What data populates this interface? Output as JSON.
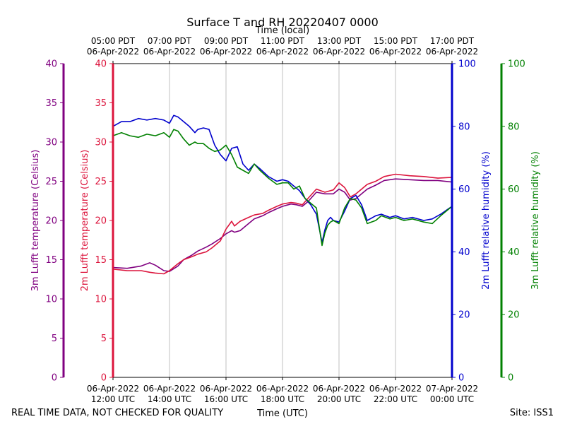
{
  "chart_data": {
    "type": "line",
    "title": "Surface T and RH 20220407 0000",
    "top_axis_title": "Time (local)",
    "xlabel": "Time (UTC)",
    "footer_left": "REAL TIME DATA, NOT CHECKED FOR QUALITY",
    "footer_right": "Site: ISS1",
    "x_unit": "hours UTC on 06-Apr-2022",
    "xlim": [
      12,
      24
    ],
    "x_ticks_bottom": [
      {
        "x": 12,
        "line1": "06-Apr-2022",
        "line2": "12:00 UTC"
      },
      {
        "x": 14,
        "line1": "06-Apr-2022",
        "line2": "14:00 UTC"
      },
      {
        "x": 16,
        "line1": "06-Apr-2022",
        "line2": "16:00 UTC"
      },
      {
        "x": 18,
        "line1": "06-Apr-2022",
        "line2": "18:00 UTC"
      },
      {
        "x": 20,
        "line1": "06-Apr-2022",
        "line2": "20:00 UTC"
      },
      {
        "x": 22,
        "line1": "06-Apr-2022",
        "line2": "22:00 UTC"
      },
      {
        "x": 24,
        "line1": "07-Apr-2022",
        "line2": "00:00 UTC"
      }
    ],
    "x_ticks_top": [
      {
        "x": 12,
        "line1": "05:00 PDT",
        "line2": "06-Apr-2022"
      },
      {
        "x": 14,
        "line1": "07:00 PDT",
        "line2": "06-Apr-2022"
      },
      {
        "x": 16,
        "line1": "09:00 PDT",
        "line2": "06-Apr-2022"
      },
      {
        "x": 18,
        "line1": "11:00 PDT",
        "line2": "06-Apr-2022"
      },
      {
        "x": 20,
        "line1": "13:00 PDT",
        "line2": "06-Apr-2022"
      },
      {
        "x": 22,
        "line1": "15:00 PDT",
        "line2": "06-Apr-2022"
      },
      {
        "x": 24,
        "line1": "17:00 PDT",
        "line2": "06-Apr-2022"
      }
    ],
    "grid": "vertical",
    "axes": [
      {
        "id": "t3",
        "label": "3m Lufft temperature (Celsius)",
        "side": "left-outer",
        "color": "#800080",
        "ylim": [
          0,
          40
        ],
        "ticks": [
          0,
          5,
          10,
          15,
          20,
          25,
          30,
          35,
          40
        ]
      },
      {
        "id": "t2",
        "label": "2m Lufft temperature (Celsius)",
        "side": "left-inner",
        "color": "#dc143c",
        "ylim": [
          0,
          40
        ],
        "ticks": [
          0,
          5,
          10,
          15,
          20,
          25,
          30,
          35,
          40
        ]
      },
      {
        "id": "rh2",
        "label": "2m Lufft relative humidity (%)",
        "side": "right-inner",
        "color": "#0000cd",
        "ylim": [
          0,
          100
        ],
        "ticks": [
          0,
          20,
          40,
          60,
          80,
          100
        ]
      },
      {
        "id": "rh3",
        "label": "3m Lufft relative humidity (%)",
        "side": "right-outer",
        "color": "#008000",
        "ylim": [
          0,
          100
        ],
        "ticks": [
          0,
          20,
          40,
          60,
          80,
          100
        ]
      }
    ],
    "series": [
      {
        "axis": "t3",
        "color": "#800080",
        "x": [
          12.0,
          12.5,
          13.0,
          13.3,
          13.5,
          13.8,
          14.0,
          14.3,
          14.5,
          14.8,
          15.0,
          15.3,
          15.5,
          15.8,
          16.0,
          16.2,
          16.3,
          16.5,
          16.8,
          17.0,
          17.3,
          17.5,
          17.8,
          18.0,
          18.3,
          18.5,
          18.7,
          18.9,
          19.2,
          19.5,
          19.8,
          20.0,
          20.2,
          20.4,
          20.6,
          20.8,
          21.0,
          21.3,
          21.6,
          22.0,
          22.5,
          23.0,
          23.5,
          24.0
        ],
        "y": [
          14.0,
          13.9,
          14.2,
          14.6,
          14.3,
          13.6,
          13.5,
          14.2,
          15.0,
          15.6,
          16.1,
          16.6,
          17.0,
          17.7,
          18.3,
          18.7,
          18.5,
          18.7,
          19.6,
          20.2,
          20.6,
          21.0,
          21.5,
          21.8,
          22.1,
          22.0,
          21.8,
          22.4,
          23.6,
          23.4,
          23.4,
          24.0,
          23.6,
          22.6,
          22.8,
          23.4,
          24.0,
          24.5,
          25.1,
          25.3,
          25.2,
          25.1,
          25.1,
          24.9
        ]
      },
      {
        "axis": "t2",
        "color": "#dc143c",
        "x": [
          12.0,
          12.5,
          13.0,
          13.3,
          13.5,
          13.8,
          14.0,
          14.3,
          14.5,
          14.8,
          15.0,
          15.3,
          15.5,
          15.8,
          16.0,
          16.2,
          16.3,
          16.5,
          16.8,
          17.0,
          17.3,
          17.5,
          17.8,
          18.0,
          18.3,
          18.5,
          18.7,
          18.9,
          19.2,
          19.5,
          19.8,
          20.0,
          20.2,
          20.4,
          20.6,
          20.8,
          21.0,
          21.3,
          21.6,
          22.0,
          22.5,
          23.0,
          23.5,
          24.0
        ],
        "y": [
          13.8,
          13.6,
          13.6,
          13.4,
          13.3,
          13.2,
          13.6,
          14.5,
          15.0,
          15.4,
          15.7,
          16.0,
          16.5,
          17.4,
          18.9,
          19.9,
          19.3,
          19.9,
          20.4,
          20.7,
          20.9,
          21.3,
          21.8,
          22.1,
          22.3,
          22.2,
          22.0,
          22.8,
          24.0,
          23.6,
          23.9,
          24.8,
          24.2,
          23.0,
          23.4,
          24.0,
          24.6,
          25.0,
          25.6,
          25.9,
          25.7,
          25.6,
          25.4,
          25.5
        ]
      },
      {
        "axis": "rh2",
        "color": "#0000cd",
        "x": [
          12.0,
          12.3,
          12.6,
          12.9,
          13.2,
          13.5,
          13.8,
          14.0,
          14.15,
          14.3,
          14.5,
          14.7,
          14.9,
          15.0,
          15.2,
          15.4,
          15.6,
          15.8,
          16.0,
          16.2,
          16.4,
          16.6,
          16.8,
          17.0,
          17.2,
          17.5,
          17.8,
          18.0,
          18.2,
          18.4,
          18.6,
          18.8,
          19.0,
          19.2,
          19.4,
          19.5,
          19.6,
          19.7,
          19.8,
          20.0,
          20.2,
          20.4,
          20.6,
          20.8,
          21.0,
          21.3,
          21.5,
          21.8,
          22.0,
          22.3,
          22.6,
          23.0,
          23.3,
          23.6,
          24.0
        ],
        "y": [
          80,
          81.5,
          81.5,
          82.5,
          82,
          82.5,
          82,
          81,
          83.5,
          83,
          81.5,
          80,
          78,
          79,
          79.5,
          79,
          74,
          71,
          69,
          73,
          73.5,
          68,
          66,
          68,
          66.5,
          64,
          62.5,
          63,
          62.5,
          61,
          59.5,
          57,
          55,
          52,
          43,
          47,
          50,
          51,
          50,
          49.5,
          53,
          57,
          58,
          55,
          50,
          51.5,
          52,
          51,
          51.5,
          50.5,
          51,
          50,
          50.5,
          52,
          54.5
        ]
      },
      {
        "axis": "rh3",
        "color": "#008000",
        "x": [
          12.0,
          12.3,
          12.6,
          12.9,
          13.2,
          13.5,
          13.8,
          14.0,
          14.15,
          14.3,
          14.5,
          14.7,
          14.9,
          15.0,
          15.2,
          15.4,
          15.6,
          15.8,
          16.0,
          16.2,
          16.4,
          16.6,
          16.8,
          17.0,
          17.2,
          17.5,
          17.8,
          18.0,
          18.2,
          18.4,
          18.6,
          18.8,
          19.0,
          19.2,
          19.4,
          19.5,
          19.6,
          19.7,
          19.8,
          20.0,
          20.2,
          20.4,
          20.6,
          20.8,
          21.0,
          21.3,
          21.5,
          21.8,
          22.0,
          22.3,
          22.6,
          23.0,
          23.3,
          23.6,
          24.0
        ],
        "y": [
          77,
          78,
          77,
          76.5,
          77.5,
          77,
          78,
          76.5,
          79,
          78.5,
          76,
          74,
          75,
          74.5,
          74.5,
          73,
          72,
          72.5,
          74,
          71,
          67,
          66,
          65,
          68,
          66,
          63.5,
          61.5,
          62,
          62,
          60,
          61,
          57,
          55.5,
          54,
          42,
          46,
          48.5,
          49.5,
          50,
          49,
          54,
          57,
          56.5,
          54,
          49,
          50,
          51.5,
          50.5,
          51,
          50,
          50.5,
          49.5,
          49,
          51.5,
          54.5
        ]
      }
    ]
  }
}
